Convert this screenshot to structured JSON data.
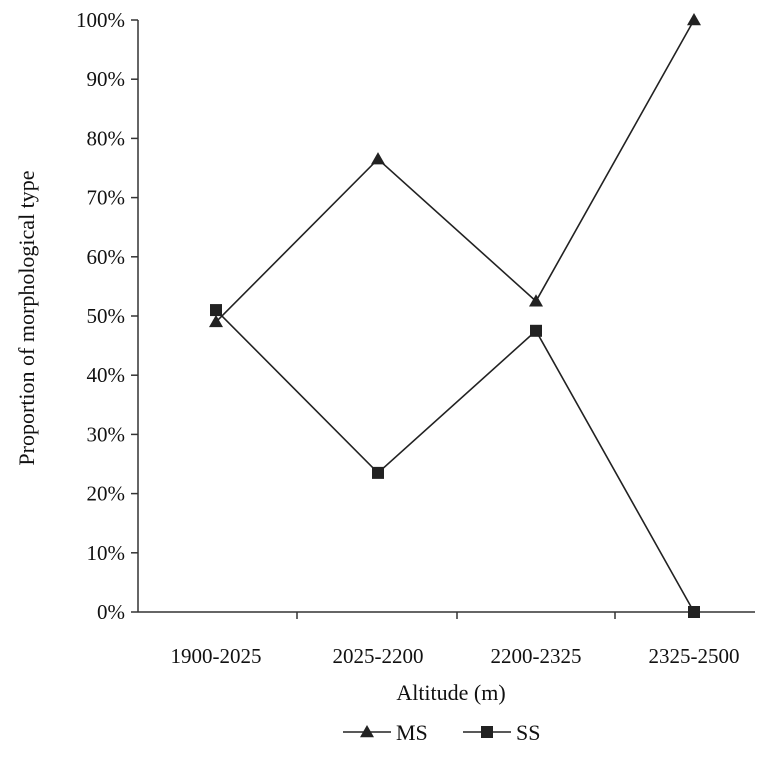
{
  "chart_data": {
    "type": "line",
    "categories": [
      "1900-2025",
      "2025-2200",
      "2200-2325",
      "2325-2500"
    ],
    "series": [
      {
        "name": "MS",
        "values": [
          49,
          76.5,
          52.5,
          100
        ],
        "marker": "triangle",
        "color": "#222222"
      },
      {
        "name": "SS",
        "values": [
          51,
          23.5,
          47.5,
          0
        ],
        "marker": "square",
        "color": "#222222"
      }
    ],
    "title": "",
    "xlabel": "Altitude (m)",
    "ylabel": "Proportion of morphological type",
    "ylim": [
      0,
      100
    ],
    "yticks": [
      "0%",
      "10%",
      "20%",
      "30%",
      "40%",
      "50%",
      "60%",
      "70%",
      "80%",
      "90%",
      "100%"
    ],
    "grid": false,
    "legend_position": "bottom-center"
  }
}
